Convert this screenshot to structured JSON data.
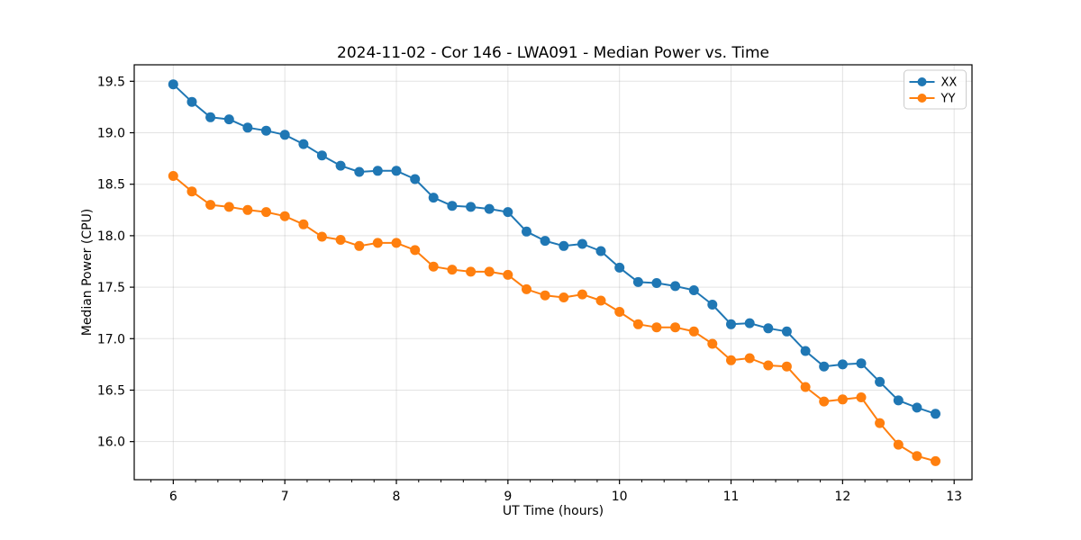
{
  "figure": {
    "background": "#ffffff",
    "text_color": "#000000",
    "grid_color": "#b0b0b0"
  },
  "chart_data": {
    "type": "line",
    "title": "2024-11-02 - Cor 146 - LWA091 - Median Power vs. Time",
    "xlabel": "UT Time (hours)",
    "ylabel": "Median Power (CPU)",
    "xlim": [
      5.65,
      13.16
    ],
    "ylim": [
      15.63,
      19.66
    ],
    "x_ticks": [
      6,
      7,
      8,
      9,
      10,
      11,
      12,
      13
    ],
    "x_minor_tick_step": 0.2,
    "y_ticks": [
      16.0,
      16.5,
      17.0,
      17.5,
      18.0,
      18.5,
      19.0,
      19.5
    ],
    "grid": true,
    "legend_position": "upper right",
    "x": [
      6.0,
      6.167,
      6.333,
      6.5,
      6.667,
      6.833,
      7.0,
      7.167,
      7.333,
      7.5,
      7.667,
      7.833,
      8.0,
      8.167,
      8.333,
      8.5,
      8.667,
      8.833,
      9.0,
      9.167,
      9.333,
      9.5,
      9.667,
      9.833,
      10.0,
      10.167,
      10.333,
      10.5,
      10.667,
      10.833,
      11.0,
      11.167,
      11.333,
      11.5,
      11.667,
      11.833,
      12.0,
      12.167,
      12.333,
      12.5,
      12.667,
      12.833
    ],
    "series": [
      {
        "name": "XX",
        "color": "#1f77b4",
        "marker": "circle",
        "values": [
          19.47,
          19.3,
          19.15,
          19.13,
          19.05,
          19.02,
          18.98,
          18.89,
          18.78,
          18.68,
          18.62,
          18.63,
          18.63,
          18.55,
          18.37,
          18.29,
          18.28,
          18.26,
          18.23,
          18.04,
          17.95,
          17.9,
          17.92,
          17.85,
          17.69,
          17.55,
          17.54,
          17.51,
          17.47,
          17.33,
          17.14,
          17.15,
          17.1,
          17.07,
          16.88,
          16.73,
          16.75,
          16.76,
          16.58,
          16.4,
          16.33,
          16.27
        ]
      },
      {
        "name": "YY",
        "color": "#ff7f0e",
        "marker": "circle",
        "values": [
          18.58,
          18.43,
          18.3,
          18.28,
          18.25,
          18.23,
          18.19,
          18.11,
          17.99,
          17.96,
          17.9,
          17.93,
          17.93,
          17.86,
          17.7,
          17.67,
          17.65,
          17.65,
          17.62,
          17.48,
          17.42,
          17.4,
          17.43,
          17.37,
          17.26,
          17.14,
          17.11,
          17.11,
          17.07,
          16.95,
          16.79,
          16.81,
          16.74,
          16.73,
          16.53,
          16.39,
          16.41,
          16.43,
          16.18,
          15.97,
          15.86,
          15.81
        ]
      }
    ]
  }
}
